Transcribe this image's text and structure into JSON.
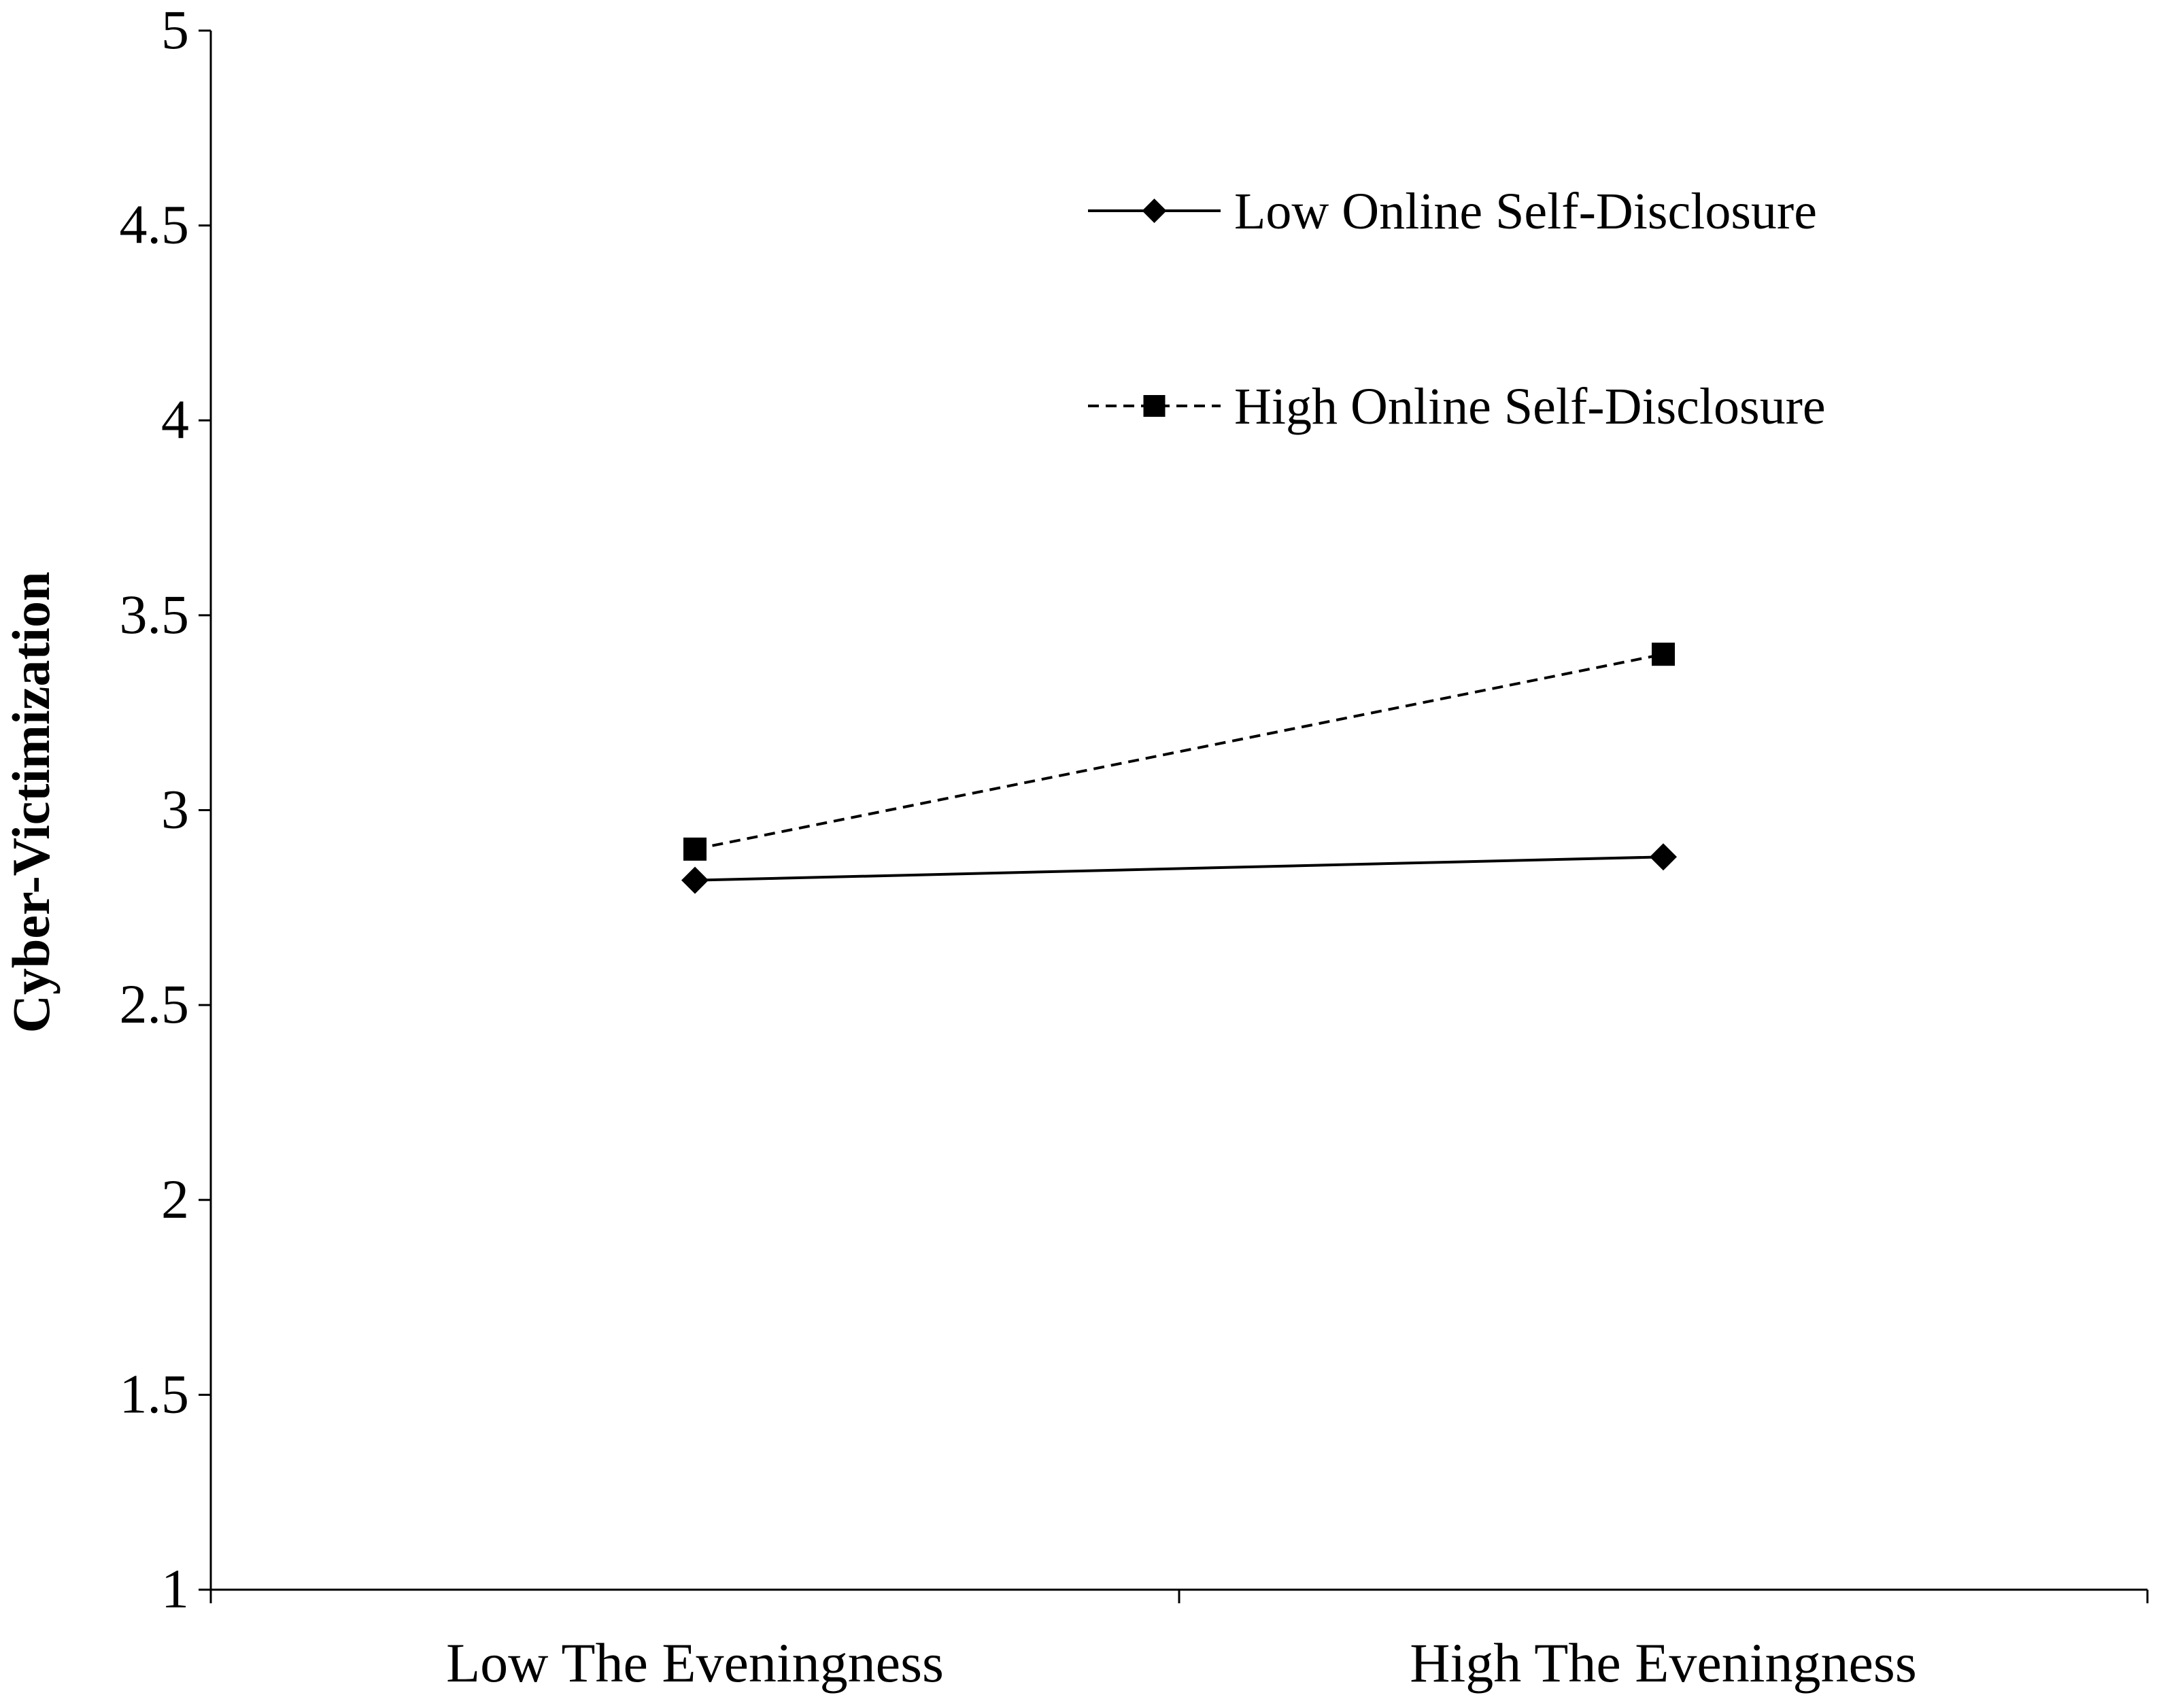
{
  "chart_data": {
    "type": "line",
    "title": "",
    "xlabel": "",
    "ylabel": "Cyber-Victimization",
    "categories": [
      "Low The Eveningness",
      "High The Eveningness"
    ],
    "ylim": [
      1,
      5
    ],
    "yticks": [
      "1",
      "1.5",
      "2",
      "2.5",
      "3",
      "3.5",
      "4",
      "4.5",
      "5"
    ],
    "grid": false,
    "legend_position": "top-right",
    "series": [
      {
        "name": "Low Online Self-Disclosure",
        "values": [
          2.82,
          2.88
        ],
        "line_style": "solid",
        "marker": "diamond",
        "color": "#000000"
      },
      {
        "name": "High Online Self-Disclosure",
        "values": [
          2.9,
          3.4
        ],
        "line_style": "dashed",
        "marker": "square",
        "color": "#000000"
      }
    ]
  }
}
